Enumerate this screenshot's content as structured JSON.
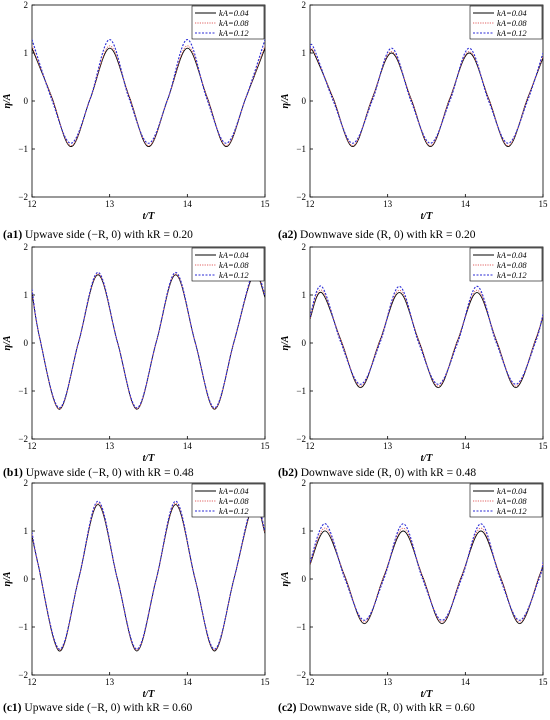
{
  "panels": [
    {
      "id": "a1",
      "caption": {
        "label": "(a1)",
        "text": "Upwave side (−R, 0) with kR = 0.20"
      },
      "chart_data": {
        "type": "line",
        "xlabel": "t/T",
        "ylabel": "η/A",
        "xlim": [
          12,
          15
        ],
        "ylim": [
          -2,
          2
        ],
        "xticks": [
          12,
          13,
          14,
          15
        ],
        "yticks": [
          -2,
          -1,
          0,
          1,
          2
        ],
        "legend": "top-right",
        "grid": false,
        "series": [
          {
            "name": "kA=0.04",
            "color": "#000000",
            "dash": "solid",
            "x": [
              12,
              12.25,
              12.5,
              12.75,
              13,
              13.25,
              13.5,
              13.75,
              14,
              14.25,
              14.5,
              14.75,
              15
            ],
            "y": [
              1.1,
              0.1,
              -0.95,
              0.05,
              1.1,
              0.1,
              -0.95,
              0.05,
              1.1,
              0.1,
              -0.95,
              0.05,
              1.1
            ]
          },
          {
            "name": "kA=0.08",
            "color": "#e06060",
            "dash": "dotted",
            "x": [
              12,
              12.25,
              12.5,
              12.75,
              13,
              13.25,
              13.5,
              13.75,
              14,
              14.25,
              14.5,
              14.75,
              15
            ],
            "y": [
              1.15,
              0.1,
              -0.93,
              0.05,
              1.15,
              0.1,
              -0.93,
              0.05,
              1.15,
              0.1,
              -0.93,
              0.05,
              1.15
            ]
          },
          {
            "name": "kA=0.12",
            "color": "#2b2bd6",
            "dash": "dotted",
            "x": [
              12,
              12.25,
              12.5,
              12.75,
              13,
              13.25,
              13.5,
              13.75,
              14,
              14.25,
              14.5,
              14.75,
              15
            ],
            "y": [
              1.28,
              0.05,
              -0.88,
              0.05,
              1.28,
              0.05,
              -0.88,
              0.05,
              1.28,
              0.05,
              -0.88,
              0.05,
              1.28
            ]
          }
        ]
      }
    },
    {
      "id": "a2",
      "caption": {
        "label": "(a2)",
        "text": "Downwave side (R, 0) with kR = 0.20"
      },
      "chart_data": {
        "type": "line",
        "xlabel": "t/T",
        "ylabel": "η/A",
        "xlim": [
          12,
          15
        ],
        "ylim": [
          -2,
          2
        ],
        "xticks": [
          12,
          13,
          14,
          15
        ],
        "yticks": [
          -2,
          -1,
          0,
          1,
          2
        ],
        "legend": "top-right",
        "grid": false,
        "series": [
          {
            "name": "kA=0.04",
            "color": "#000000",
            "dash": "solid",
            "x": [
              12,
              12.05,
              12.3,
              12.55,
              12.8,
              13.05,
              13.3,
              13.55,
              13.8,
              14.05,
              14.3,
              14.55,
              14.8,
              15
            ],
            "y": [
              1.0,
              1.0,
              0.05,
              -0.95,
              0.05,
              1.0,
              0.05,
              -0.95,
              0.05,
              1.0,
              0.05,
              -0.95,
              0.05,
              0.9
            ]
          },
          {
            "name": "kA=0.08",
            "color": "#e06060",
            "dash": "dotted",
            "x": [
              12,
              12.05,
              12.3,
              12.55,
              12.8,
              13.05,
              13.3,
              13.55,
              13.8,
              14.05,
              14.3,
              14.55,
              14.8,
              15
            ],
            "y": [
              1.03,
              1.03,
              0.05,
              -0.93,
              0.05,
              1.03,
              0.05,
              -0.93,
              0.05,
              1.03,
              0.05,
              -0.93,
              0.05,
              0.93
            ]
          },
          {
            "name": "kA=0.12",
            "color": "#2b2bd6",
            "dash": "dotted",
            "x": [
              12,
              12.05,
              12.3,
              12.55,
              12.8,
              13.05,
              13.3,
              13.55,
              13.8,
              14.05,
              14.3,
              14.55,
              14.8,
              15
            ],
            "y": [
              1.1,
              1.1,
              0.0,
              -0.88,
              0.0,
              1.1,
              0.0,
              -0.88,
              0.0,
              1.1,
              0.0,
              -0.88,
              0.0,
              1.0
            ]
          }
        ]
      }
    },
    {
      "id": "b1",
      "caption": {
        "label": "(b1)",
        "text": "Upwave side (−R, 0) with kR = 0.48"
      },
      "chart_data": {
        "type": "line",
        "xlabel": "t/T",
        "ylabel": "η/A",
        "xlim": [
          12,
          15
        ],
        "ylim": [
          -2,
          2
        ],
        "xticks": [
          12,
          13,
          14,
          15
        ],
        "yticks": [
          -2,
          -1,
          0,
          1,
          2
        ],
        "legend": "top-right",
        "grid": false,
        "series": [
          {
            "name": "kA=0.04",
            "color": "#000000",
            "dash": "solid",
            "x": [
              12,
              12.1,
              12.35,
              12.6,
              12.85,
              13.1,
              13.35,
              13.6,
              13.85,
              14.1,
              14.35,
              14.6,
              14.85,
              15
            ],
            "y": [
              1.05,
              0.1,
              -1.38,
              0.02,
              1.42,
              0.02,
              -1.38,
              0.02,
              1.42,
              0.02,
              -1.38,
              0.02,
              1.42,
              0.95
            ]
          },
          {
            "name": "kA=0.08",
            "color": "#e06060",
            "dash": "dotted",
            "x": [
              12,
              12.1,
              12.35,
              12.6,
              12.85,
              13.1,
              13.35,
              13.6,
              13.85,
              14.1,
              14.35,
              14.6,
              14.85,
              15
            ],
            "y": [
              1.08,
              0.1,
              -1.37,
              0.02,
              1.44,
              0.02,
              -1.37,
              0.02,
              1.44,
              0.02,
              -1.37,
              0.02,
              1.44,
              0.98
            ]
          },
          {
            "name": "kA=0.12",
            "color": "#2b2bd6",
            "dash": "dotted",
            "x": [
              12,
              12.1,
              12.35,
              12.6,
              12.85,
              13.1,
              13.35,
              13.6,
              13.85,
              14.1,
              14.35,
              14.6,
              14.85,
              15
            ],
            "y": [
              1.12,
              0.1,
              -1.35,
              0.02,
              1.47,
              0.02,
              -1.35,
              0.02,
              1.47,
              0.02,
              -1.35,
              0.02,
              1.47,
              1.0
            ]
          }
        ]
      }
    },
    {
      "id": "b2",
      "caption": {
        "label": "(b2)",
        "text": "Downwave side (R, 0) with kR = 0.48"
      },
      "chart_data": {
        "type": "line",
        "xlabel": "t/T",
        "ylabel": "η/A",
        "xlim": [
          12,
          15
        ],
        "ylim": [
          -2,
          2
        ],
        "xticks": [
          12,
          13,
          14,
          15
        ],
        "yticks": [
          -2,
          -1,
          0,
          1,
          2
        ],
        "legend": "top-right",
        "grid": false,
        "series": [
          {
            "name": "kA=0.04",
            "color": "#000000",
            "dash": "solid",
            "x": [
              12,
              12.15,
              12.4,
              12.65,
              12.9,
              13.15,
              13.4,
              13.65,
              13.9,
              14.15,
              14.4,
              14.65,
              14.9,
              15
            ],
            "y": [
              0.5,
              1.05,
              0.05,
              -0.93,
              0.05,
              1.05,
              0.05,
              -0.93,
              0.05,
              1.05,
              0.05,
              -0.93,
              0.05,
              0.55
            ]
          },
          {
            "name": "kA=0.08",
            "color": "#e06060",
            "dash": "dotted",
            "x": [
              12,
              12.15,
              12.4,
              12.65,
              12.9,
              13.15,
              13.4,
              13.65,
              13.9,
              14.15,
              14.4,
              14.65,
              14.9,
              15
            ],
            "y": [
              0.52,
              1.1,
              0.05,
              -0.9,
              0.05,
              1.1,
              0.05,
              -0.9,
              0.05,
              1.1,
              0.05,
              -0.9,
              0.05,
              0.57
            ]
          },
          {
            "name": "kA=0.12",
            "color": "#2b2bd6",
            "dash": "dotted",
            "x": [
              12,
              12.15,
              12.4,
              12.65,
              12.9,
              13.15,
              13.4,
              13.65,
              13.9,
              14.15,
              14.4,
              14.65,
              14.9,
              15
            ],
            "y": [
              0.55,
              1.18,
              0.0,
              -0.86,
              0.0,
              1.18,
              0.0,
              -0.86,
              0.0,
              1.18,
              0.0,
              -0.86,
              0.0,
              0.6
            ]
          }
        ]
      }
    },
    {
      "id": "c1",
      "caption": {
        "label": "(c1)",
        "text": "Upwave side (−R, 0) with kR = 0.60"
      },
      "chart_data": {
        "type": "line",
        "xlabel": "t/T",
        "ylabel": "η/A",
        "xlim": [
          12,
          15
        ],
        "ylim": [
          -2,
          2
        ],
        "xticks": [
          12,
          13,
          14,
          15
        ],
        "yticks": [
          -2,
          -1,
          0,
          1,
          2
        ],
        "legend": "top-right",
        "grid": false,
        "series": [
          {
            "name": "kA=0.04",
            "color": "#000000",
            "dash": "solid",
            "x": [
              12,
              12.08,
              12.35,
              12.6,
              12.85,
              13.1,
              13.35,
              13.6,
              13.85,
              14.1,
              14.35,
              14.6,
              14.85,
              15
            ],
            "y": [
              0.9,
              0.3,
              -1.5,
              0.0,
              1.55,
              0.0,
              -1.5,
              0.0,
              1.55,
              0.0,
              -1.5,
              0.0,
              1.55,
              0.95
            ]
          },
          {
            "name": "kA=0.08",
            "color": "#e06060",
            "dash": "dotted",
            "x": [
              12,
              12.08,
              12.35,
              12.6,
              12.85,
              13.1,
              13.35,
              13.6,
              13.85,
              14.1,
              14.35,
              14.6,
              14.85,
              15
            ],
            "y": [
              0.93,
              0.3,
              -1.48,
              0.0,
              1.58,
              0.0,
              -1.48,
              0.0,
              1.58,
              0.0,
              -1.48,
              0.0,
              1.58,
              0.97
            ]
          },
          {
            "name": "kA=0.12",
            "color": "#2b2bd6",
            "dash": "dotted",
            "x": [
              12,
              12.08,
              12.35,
              12.6,
              12.85,
              13.1,
              13.35,
              13.6,
              13.85,
              14.1,
              14.35,
              14.6,
              14.85,
              15
            ],
            "y": [
              0.97,
              0.3,
              -1.46,
              0.0,
              1.62,
              0.0,
              -1.46,
              0.0,
              1.62,
              0.0,
              -1.46,
              0.0,
              1.62,
              1.0
            ]
          }
        ]
      }
    },
    {
      "id": "c2",
      "caption": {
        "label": "(c2)",
        "text": "Downwave side (R, 0) with kR = 0.60"
      },
      "chart_data": {
        "type": "line",
        "xlabel": "t/T",
        "ylabel": "η/A",
        "xlim": [
          12,
          15
        ],
        "ylim": [
          -2,
          2
        ],
        "xticks": [
          12,
          13,
          14,
          15
        ],
        "yticks": [
          -2,
          -1,
          0,
          1,
          2
        ],
        "legend": "top-right",
        "grid": false,
        "series": [
          {
            "name": "kA=0.04",
            "color": "#000000",
            "dash": "solid",
            "x": [
              12,
              12.2,
              12.45,
              12.7,
              12.95,
              13.2,
              13.45,
              13.7,
              13.95,
              14.2,
              14.45,
              14.7,
              14.95,
              15
            ],
            "y": [
              0.3,
              1.0,
              0.05,
              -0.93,
              0.05,
              1.0,
              0.05,
              -0.93,
              0.05,
              1.0,
              0.05,
              -0.93,
              0.05,
              0.3
            ]
          },
          {
            "name": "kA=0.08",
            "color": "#e06060",
            "dash": "dotted",
            "x": [
              12,
              12.2,
              12.45,
              12.7,
              12.95,
              13.2,
              13.45,
              13.7,
              13.95,
              14.2,
              14.45,
              14.7,
              14.95,
              15
            ],
            "y": [
              0.32,
              1.06,
              0.05,
              -0.9,
              0.05,
              1.06,
              0.05,
              -0.9,
              0.05,
              1.06,
              0.05,
              -0.9,
              0.05,
              0.32
            ]
          },
          {
            "name": "kA=0.12",
            "color": "#2b2bd6",
            "dash": "dotted",
            "x": [
              12,
              12.2,
              12.45,
              12.7,
              12.95,
              13.2,
              13.45,
              13.7,
              13.95,
              14.2,
              14.45,
              14.7,
              14.95,
              15
            ],
            "y": [
              0.35,
              1.15,
              0.0,
              -0.86,
              0.0,
              1.15,
              0.0,
              -0.86,
              0.0,
              1.15,
              0.0,
              -0.86,
              0.0,
              0.35
            ]
          }
        ]
      }
    }
  ]
}
